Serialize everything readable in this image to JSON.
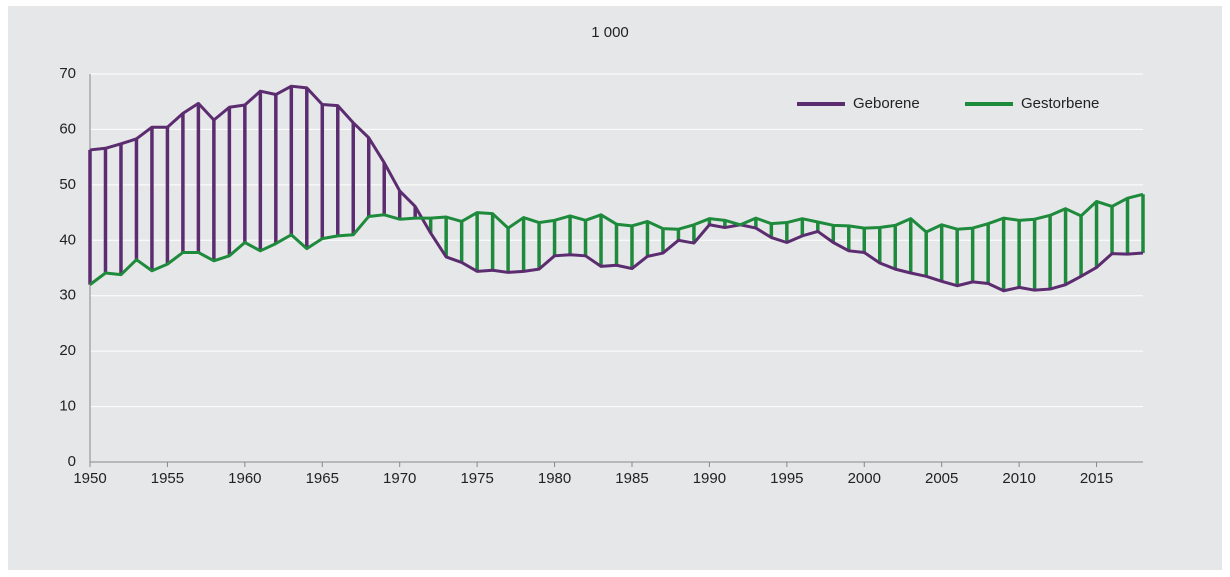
{
  "chart_data": {
    "type": "line",
    "title": "1 000",
    "x": [
      1950,
      1951,
      1952,
      1953,
      1954,
      1955,
      1956,
      1957,
      1958,
      1959,
      1960,
      1961,
      1962,
      1963,
      1964,
      1965,
      1966,
      1967,
      1968,
      1969,
      1970,
      1971,
      1972,
      1973,
      1974,
      1975,
      1976,
      1977,
      1978,
      1979,
      1980,
      1981,
      1982,
      1983,
      1984,
      1985,
      1986,
      1987,
      1988,
      1989,
      1990,
      1991,
      1992,
      1993,
      1994,
      1995,
      1996,
      1997,
      1998,
      1999,
      2000,
      2001,
      2002,
      2003,
      2004,
      2005,
      2006,
      2007,
      2008,
      2009,
      2010,
      2011,
      2012,
      2013,
      2014,
      2015,
      2016,
      2017,
      2018
    ],
    "series": [
      {
        "name": "Geborene",
        "color": "#5b2c6f",
        "values": [
          56.3,
          56.6,
          57.4,
          58.3,
          60.4,
          60.4,
          62.9,
          64.7,
          61.7,
          64.0,
          64.4,
          66.9,
          66.3,
          67.8,
          67.5,
          64.5,
          64.3,
          61.2,
          58.5,
          54.0,
          48.9,
          46.1,
          41.3,
          37.0,
          36.0,
          34.4,
          34.6,
          34.2,
          34.4,
          34.8,
          37.2,
          37.4,
          37.2,
          35.3,
          35.5,
          34.9,
          37.1,
          37.7,
          40.0,
          39.5,
          42.8,
          42.3,
          42.8,
          42.2,
          40.5,
          39.6,
          40.8,
          41.6,
          39.6,
          38.1,
          37.8,
          35.9,
          34.8,
          34.1,
          33.5,
          32.6,
          31.8,
          32.5,
          32.2,
          30.9,
          31.5,
          31.0,
          31.2,
          32.0,
          33.5,
          35.1,
          37.6,
          37.5,
          37.7
        ]
      },
      {
        "name": "Gestorbene",
        "color": "#1e8a3c",
        "values": [
          32.0,
          34.1,
          33.8,
          36.5,
          34.5,
          35.7,
          37.8,
          37.8,
          36.3,
          37.2,
          39.6,
          38.1,
          39.4,
          41.0,
          38.5,
          40.3,
          40.8,
          41.0,
          44.3,
          44.6,
          43.8,
          44.0,
          44.0,
          44.2,
          43.4,
          45.0,
          44.8,
          42.2,
          44.1,
          43.2,
          43.6,
          44.4,
          43.6,
          44.6,
          42.9,
          42.6,
          43.4,
          42.1,
          42.0,
          42.8,
          43.9,
          43.6,
          42.8,
          44.0,
          43.0,
          43.2,
          43.9,
          43.3,
          42.7,
          42.6,
          42.2,
          42.3,
          42.7,
          43.9,
          41.5,
          42.8,
          42.0,
          42.2,
          43.0,
          44.0,
          43.6,
          43.8,
          44.5,
          45.7,
          44.4,
          47.0,
          46.1,
          47.6,
          48.3
        ]
      }
    ],
    "xlim": [
      1950,
      2018
    ],
    "xticks": [
      1950,
      1955,
      1960,
      1965,
      1970,
      1975,
      1980,
      1985,
      1990,
      1995,
      2000,
      2005,
      2010,
      2015
    ],
    "ylim": [
      0,
      70
    ],
    "yticks": [
      0,
      10,
      20,
      30,
      40,
      50,
      60,
      70
    ],
    "grid": true,
    "legend": "top-right"
  }
}
